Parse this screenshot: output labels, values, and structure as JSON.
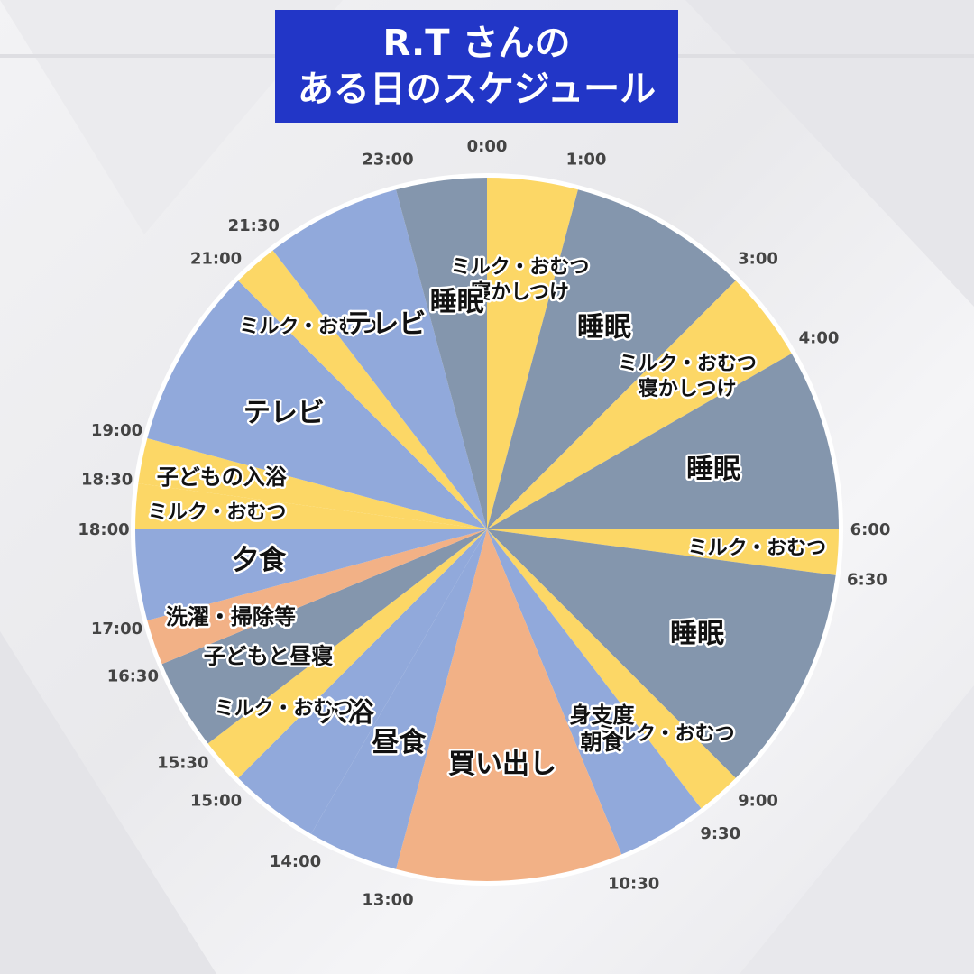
{
  "title": {
    "line1": "R.T さんの",
    "line2": "ある日のスケジュール"
  },
  "colors": {
    "sleep": "#8496ad",
    "care": "#fcd766",
    "leisure": "#91a9db",
    "chores": "#f2b186",
    "title_bg": "#2236c7"
  },
  "chart_data": {
    "type": "pie",
    "segments": [
      {
        "start": "0:00",
        "end": "1:00",
        "color": "care",
        "label": [
          "ミルク・おむつ",
          "寝かしつけ"
        ]
      },
      {
        "start": "1:00",
        "end": "3:00",
        "color": "sleep",
        "label": [
          "睡眠"
        ]
      },
      {
        "start": "3:00",
        "end": "4:00",
        "color": "care",
        "label": [
          "ミルク・おむつ",
          "寝かしつけ"
        ]
      },
      {
        "start": "4:00",
        "end": "6:00",
        "color": "sleep",
        "label": [
          "睡眠"
        ]
      },
      {
        "start": "6:00",
        "end": "6:30",
        "color": "care",
        "label": [
          "ミルク・おむつ"
        ]
      },
      {
        "start": "6:30",
        "end": "9:00",
        "color": "sleep",
        "label": [
          "睡眠"
        ]
      },
      {
        "start": "9:00",
        "end": "9:30",
        "color": "care",
        "label": [
          "ミルク・おむつ"
        ]
      },
      {
        "start": "9:30",
        "end": "10:30",
        "color": "leisure",
        "label": [
          "身支度",
          "朝食"
        ]
      },
      {
        "start": "10:30",
        "end": "13:00",
        "color": "chores",
        "label": [
          "買い出し"
        ]
      },
      {
        "start": "13:00",
        "end": "14:00",
        "color": "leisure",
        "label": [
          "昼食"
        ]
      },
      {
        "start": "14:00",
        "end": "15:00",
        "color": "leisure",
        "label": [
          "入浴"
        ]
      },
      {
        "start": "15:00",
        "end": "15:30",
        "color": "care",
        "label": [
          "ミルク・おむつ"
        ]
      },
      {
        "start": "15:30",
        "end": "16:30",
        "color": "sleep",
        "label": [
          "子どもと昼寝"
        ]
      },
      {
        "start": "16:30",
        "end": "17:00",
        "color": "chores",
        "label": [
          "洗濯・掃除等"
        ]
      },
      {
        "start": "17:00",
        "end": "18:00",
        "color": "leisure",
        "label": [
          "夕食"
        ]
      },
      {
        "start": "18:00",
        "end": "18:30",
        "color": "care",
        "label": [
          "ミルク・おむつ"
        ]
      },
      {
        "start": "18:30",
        "end": "19:00",
        "color": "care",
        "label": [
          "子どもの入浴"
        ]
      },
      {
        "start": "19:00",
        "end": "21:00",
        "color": "leisure",
        "label": [
          "テレビ"
        ]
      },
      {
        "start": "21:00",
        "end": "21:30",
        "color": "care",
        "label": [
          "ミルク・おむつ"
        ]
      },
      {
        "start": "21:30",
        "end": "23:00",
        "color": "leisure",
        "label": [
          "テレビ"
        ]
      },
      {
        "start": "23:00",
        "end": "24:00",
        "color": "sleep",
        "label": [
          "睡眠"
        ]
      }
    ],
    "time_labels": [
      "0:00",
      "1:00",
      "3:00",
      "4:00",
      "6:00",
      "6:30",
      "9:00",
      "9:30",
      "10:30",
      "13:00",
      "14:00",
      "15:00",
      "15:30",
      "16:30",
      "17:00",
      "18:00",
      "18:30",
      "19:00",
      "21:00",
      "21:30",
      "23:00"
    ]
  }
}
